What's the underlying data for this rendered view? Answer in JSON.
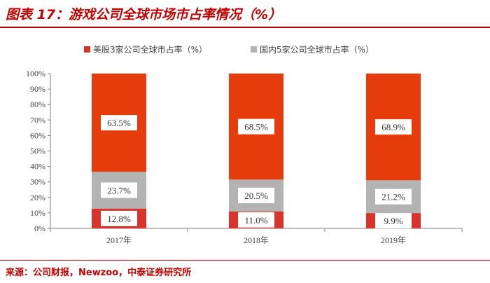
{
  "header": {
    "title": "图表 17：游戏公司全球市场市占率情况（%）"
  },
  "footer": {
    "source": "来源：公司财报，Newzoo，中泰证券研究所"
  },
  "colors": {
    "us": "#d9342b",
    "cn": "#b3b3b3",
    "other": "#e63b0a"
  },
  "chart_data": {
    "type": "bar",
    "stacked": true,
    "categories": [
      "2017年",
      "2018年",
      "2019年"
    ],
    "series": [
      {
        "name": "美股3家公司全球市占率（%）",
        "values": [
          12.8,
          11.0,
          9.9
        ],
        "labels": [
          "12.8%",
          "11.0%",
          "9.9%"
        ]
      },
      {
        "name": "国内5家公司全球市占率（%）",
        "values": [
          23.7,
          20.5,
          21.2
        ],
        "labels": [
          "23.7%",
          "20.5%",
          "21.2%"
        ]
      },
      {
        "name": "",
        "values": [
          63.5,
          68.5,
          68.9
        ],
        "labels": [
          "63.5%",
          "68.5%",
          "68.9%"
        ]
      }
    ],
    "yticks": [
      "0%",
      "10%",
      "20%",
      "30%",
      "40%",
      "50%",
      "60%",
      "70%",
      "80%",
      "90%",
      "100%"
    ],
    "ylim": [
      0,
      100
    ],
    "legend_position": "top",
    "grid": false
  }
}
